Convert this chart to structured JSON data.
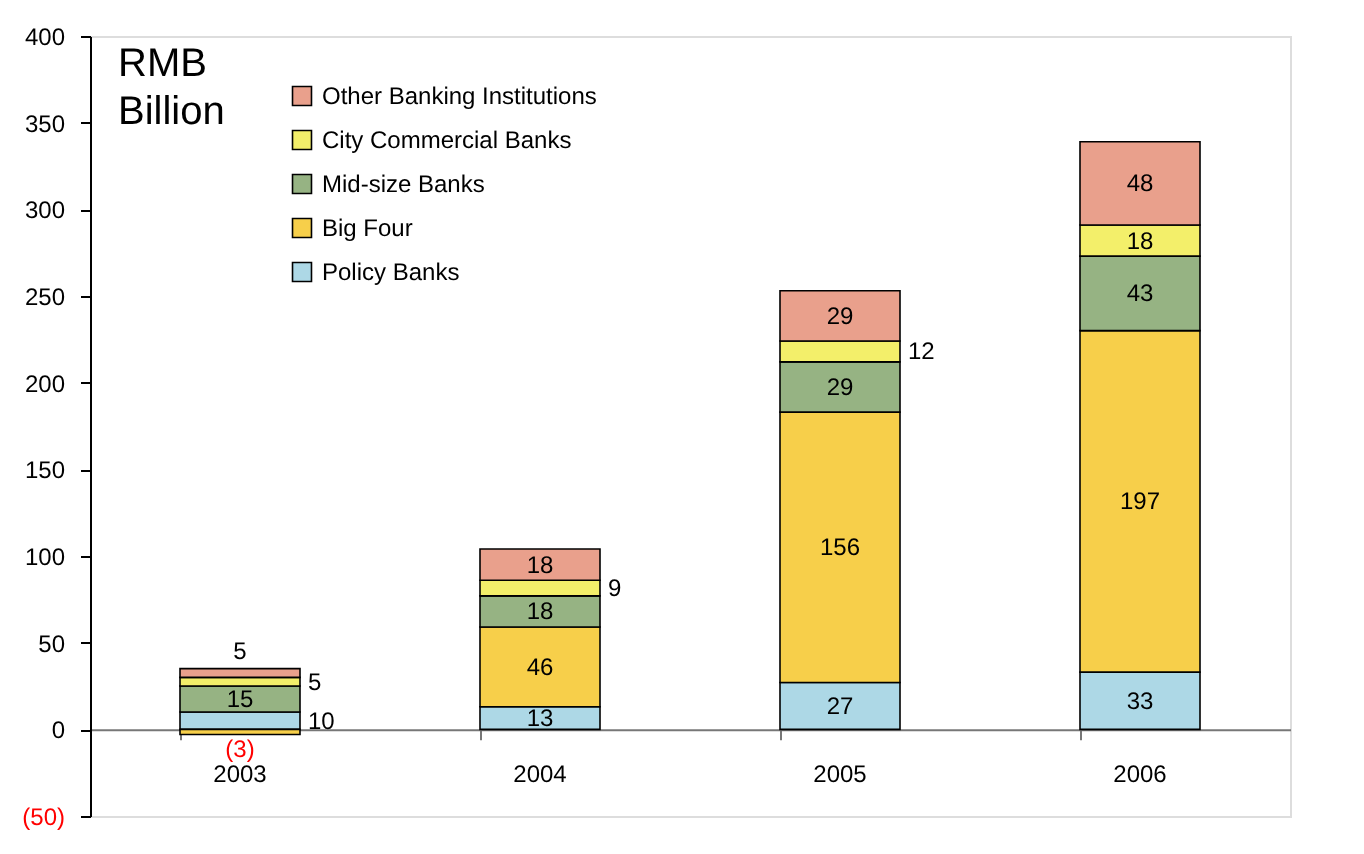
{
  "chart_data": {
    "type": "bar",
    "stacked": true,
    "ylabel": "RMB Billion",
    "categories": [
      "2003",
      "2004",
      "2005",
      "2006"
    ],
    "series": [
      {
        "name": "Policy Banks",
        "color": "#add8e6",
        "values": [
          10,
          13,
          27,
          33
        ]
      },
      {
        "name": "Big Four",
        "color": "#f7cf4a",
        "values": [
          -3,
          46,
          156,
          197
        ],
        "value_labels": [
          "(3)",
          "46",
          "156",
          "197"
        ]
      },
      {
        "name": "Mid-size Banks",
        "color": "#96b383",
        "values": [
          15,
          18,
          29,
          43
        ]
      },
      {
        "name": "City Commercial Banks",
        "color": "#f3ef6a",
        "values": [
          5,
          9,
          12,
          18
        ]
      },
      {
        "name": "Other Banking Institutions",
        "color": "#e9a08c",
        "values": [
          5,
          18,
          29,
          48
        ]
      }
    ],
    "ylim": [
      -50,
      400
    ],
    "yticks": [
      {
        "value": -50,
        "label": "(50)"
      },
      0,
      50,
      100,
      150,
      200,
      250,
      300,
      350,
      400
    ],
    "data_labels": true,
    "legend": "top left",
    "grid": false
  }
}
